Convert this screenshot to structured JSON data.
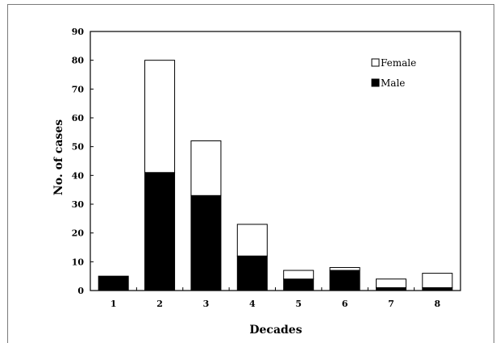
{
  "chart_data": {
    "type": "bar",
    "stacked": true,
    "title": "",
    "xlabel": "Decades",
    "ylabel": "No. of cases",
    "categories": [
      "1",
      "2",
      "3",
      "4",
      "5",
      "6",
      "7",
      "8"
    ],
    "series": [
      {
        "name": "Male",
        "color": "#000000",
        "values": [
          5,
          41,
          33,
          12,
          4,
          7,
          1,
          1
        ]
      },
      {
        "name": "Female",
        "color": "#ffffff",
        "values": [
          0,
          39,
          19,
          11,
          3,
          1,
          3,
          5
        ]
      }
    ],
    "ylim": [
      0,
      90
    ],
    "yticks": [
      "0",
      "10",
      "20",
      "30",
      "40",
      "50",
      "60",
      "70",
      "80",
      "90"
    ],
    "grid": false,
    "legend": {
      "placement": "top-right",
      "entries": [
        {
          "label": "Female",
          "swatch": "#ffffff"
        },
        {
          "label": "Male",
          "swatch": "#000000"
        }
      ]
    }
  }
}
